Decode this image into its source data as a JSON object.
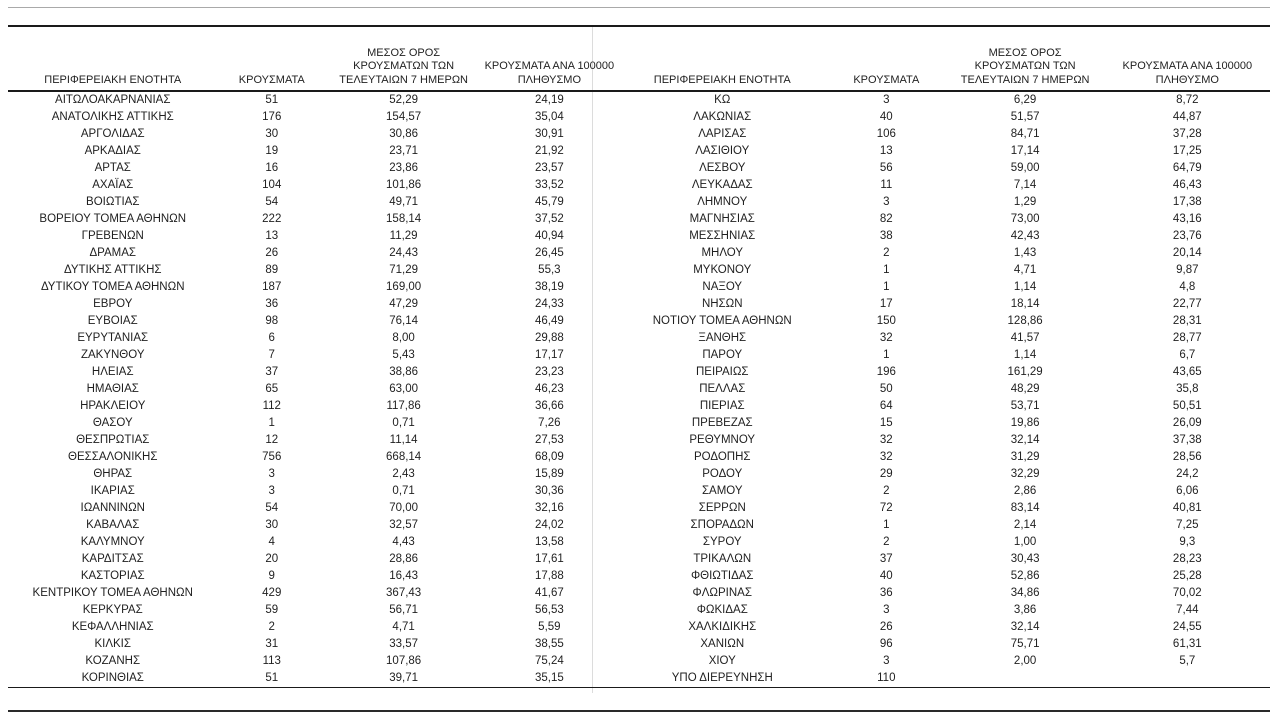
{
  "page": {
    "columns": {
      "region": "ΠΕΡΙΦΕΡΕΙΑΚΗ ΕΝΟΤΗΤΑ",
      "cases": "ΚΡΟΥΣΜΑΤΑ",
      "avg7": "ΜΕΣΟΣ ΟΡΟΣ\nΚΡΟΥΣΜΑΤΩΝ ΤΩΝ\nΤΕΛΕΥΤΑΙΩΝ 7 ΗΜΕΡΩΝ",
      "per100k": "ΚΡΟΥΣΜΑΤΑ ΑΝΑ 100000\nΠΛΗΘΥΣΜΟ"
    },
    "left_rows": [
      [
        "ΑΙΤΩΛΟΑΚΑΡΝΑΝΙΑΣ",
        "51",
        "52,29",
        "24,19"
      ],
      [
        "ΑΝΑΤΟΛΙΚΗΣ ΑΤΤΙΚΗΣ",
        "176",
        "154,57",
        "35,04"
      ],
      [
        "ΑΡΓΟΛΙΔΑΣ",
        "30",
        "30,86",
        "30,91"
      ],
      [
        "ΑΡΚΑΔΙΑΣ",
        "19",
        "23,71",
        "21,92"
      ],
      [
        "ΑΡΤΑΣ",
        "16",
        "23,86",
        "23,57"
      ],
      [
        "ΑΧΑΪΑΣ",
        "104",
        "101,86",
        "33,52"
      ],
      [
        "ΒΟΙΩΤΙΑΣ",
        "54",
        "49,71",
        "45,79"
      ],
      [
        "ΒΟΡΕΙΟΥ ΤΟΜΕΑ ΑΘΗΝΩΝ",
        "222",
        "158,14",
        "37,52"
      ],
      [
        "ΓΡΕΒΕΝΩΝ",
        "13",
        "11,29",
        "40,94"
      ],
      [
        "ΔΡΑΜΑΣ",
        "26",
        "24,43",
        "26,45"
      ],
      [
        "ΔΥΤΙΚΗΣ ΑΤΤΙΚΗΣ",
        "89",
        "71,29",
        "55,3"
      ],
      [
        "ΔΥΤΙΚΟΥ ΤΟΜΕΑ ΑΘΗΝΩΝ",
        "187",
        "169,00",
        "38,19"
      ],
      [
        "ΕΒΡΟΥ",
        "36",
        "47,29",
        "24,33"
      ],
      [
        "ΕΥΒΟΙΑΣ",
        "98",
        "76,14",
        "46,49"
      ],
      [
        "ΕΥΡΥΤΑΝΙΑΣ",
        "6",
        "8,00",
        "29,88"
      ],
      [
        "ΖΑΚΥΝΘΟΥ",
        "7",
        "5,43",
        "17,17"
      ],
      [
        "ΗΛΕΙΑΣ",
        "37",
        "38,86",
        "23,23"
      ],
      [
        "ΗΜΑΘΙΑΣ",
        "65",
        "63,00",
        "46,23"
      ],
      [
        "ΗΡΑΚΛΕΙΟΥ",
        "112",
        "117,86",
        "36,66"
      ],
      [
        "ΘΑΣΟΥ",
        "1",
        "0,71",
        "7,26"
      ],
      [
        "ΘΕΣΠΡΩΤΙΑΣ",
        "12",
        "11,14",
        "27,53"
      ],
      [
        "ΘΕΣΣΑΛΟΝΙΚΗΣ",
        "756",
        "668,14",
        "68,09"
      ],
      [
        "ΘΗΡΑΣ",
        "3",
        "2,43",
        "15,89"
      ],
      [
        "ΙΚΑΡΙΑΣ",
        "3",
        "0,71",
        "30,36"
      ],
      [
        "ΙΩΑΝΝΙΝΩΝ",
        "54",
        "70,00",
        "32,16"
      ],
      [
        "ΚΑΒΑΛΑΣ",
        "30",
        "32,57",
        "24,02"
      ],
      [
        "ΚΑΛΥΜΝΟΥ",
        "4",
        "4,43",
        "13,58"
      ],
      [
        "ΚΑΡΔΙΤΣΑΣ",
        "20",
        "28,86",
        "17,61"
      ],
      [
        "ΚΑΣΤΟΡΙΑΣ",
        "9",
        "16,43",
        "17,88"
      ],
      [
        "ΚΕΝΤΡΙΚΟΥ ΤΟΜΕΑ ΑΘΗΝΩΝ",
        "429",
        "367,43",
        "41,67"
      ],
      [
        "ΚΕΡΚΥΡΑΣ",
        "59",
        "56,71",
        "56,53"
      ],
      [
        "ΚΕΦΑΛΛΗΝΙΑΣ",
        "2",
        "4,71",
        "5,59"
      ],
      [
        "ΚΙΛΚΙΣ",
        "31",
        "33,57",
        "38,55"
      ],
      [
        "ΚΟΖΑΝΗΣ",
        "113",
        "107,86",
        "75,24"
      ],
      [
        "ΚΟΡΙΝΘΙΑΣ",
        "51",
        "39,71",
        "35,15"
      ]
    ],
    "right_rows": [
      [
        "ΚΩ",
        "3",
        "6,29",
        "8,72"
      ],
      [
        "ΛΑΚΩΝΙΑΣ",
        "40",
        "51,57",
        "44,87"
      ],
      [
        "ΛΑΡΙΣΑΣ",
        "106",
        "84,71",
        "37,28"
      ],
      [
        "ΛΑΣΙΘΙΟΥ",
        "13",
        "17,14",
        "17,25"
      ],
      [
        "ΛΕΣΒΟΥ",
        "56",
        "59,00",
        "64,79"
      ],
      [
        "ΛΕΥΚΑΔΑΣ",
        "11",
        "7,14",
        "46,43"
      ],
      [
        "ΛΗΜΝΟΥ",
        "3",
        "1,29",
        "17,38"
      ],
      [
        "ΜΑΓΝΗΣΙΑΣ",
        "82",
        "73,00",
        "43,16"
      ],
      [
        "ΜΕΣΣΗΝΙΑΣ",
        "38",
        "42,43",
        "23,76"
      ],
      [
        "ΜΗΛΟΥ",
        "2",
        "1,43",
        "20,14"
      ],
      [
        "ΜΥΚΟΝΟΥ",
        "1",
        "4,71",
        "9,87"
      ],
      [
        "ΝΑΞΟΥ",
        "1",
        "1,14",
        "4,8"
      ],
      [
        "ΝΗΣΩΝ",
        "17",
        "18,14",
        "22,77"
      ],
      [
        "ΝΟΤΙΟΥ ΤΟΜΕΑ ΑΘΗΝΩΝ",
        "150",
        "128,86",
        "28,31"
      ],
      [
        "ΞΑΝΘΗΣ",
        "32",
        "41,57",
        "28,77"
      ],
      [
        "ΠΑΡΟΥ",
        "1",
        "1,14",
        "6,7"
      ],
      [
        "ΠΕΙΡΑΙΩΣ",
        "196",
        "161,29",
        "43,65"
      ],
      [
        "ΠΕΛΛΑΣ",
        "50",
        "48,29",
        "35,8"
      ],
      [
        "ΠΙΕΡΙΑΣ",
        "64",
        "53,71",
        "50,51"
      ],
      [
        "ΠΡΕΒΕΖΑΣ",
        "15",
        "19,86",
        "26,09"
      ],
      [
        "ΡΕΘΥΜΝΟΥ",
        "32",
        "32,14",
        "37,38"
      ],
      [
        "ΡΟΔΟΠΗΣ",
        "32",
        "31,29",
        "28,56"
      ],
      [
        "ΡΟΔΟΥ",
        "29",
        "32,29",
        "24,2"
      ],
      [
        "ΣΑΜΟΥ",
        "2",
        "2,86",
        "6,06"
      ],
      [
        "ΣΕΡΡΩΝ",
        "72",
        "83,14",
        "40,81"
      ],
      [
        "ΣΠΟΡΑΔΩΝ",
        "1",
        "2,14",
        "7,25"
      ],
      [
        "ΣΥΡΟΥ",
        "2",
        "1,00",
        "9,3"
      ],
      [
        "ΤΡΙΚΑΛΩΝ",
        "37",
        "30,43",
        "28,23"
      ],
      [
        "ΦΘΙΩΤΙΔΑΣ",
        "40",
        "52,86",
        "25,28"
      ],
      [
        "ΦΛΩΡΙΝΑΣ",
        "36",
        "34,86",
        "70,02"
      ],
      [
        "ΦΩΚΙΔΑΣ",
        "3",
        "3,86",
        "7,44"
      ],
      [
        "ΧΑΛΚΙΔΙΚΗΣ",
        "26",
        "32,14",
        "24,55"
      ],
      [
        "ΧΑΝΙΩΝ",
        "96",
        "75,71",
        "61,31"
      ],
      [
        "ΧΙΟΥ",
        "3",
        "2,00",
        "5,7"
      ],
      [
        "ΥΠΟ ΔΙΕΡΕΥΝΗΣΗ",
        "110",
        "",
        ""
      ]
    ]
  }
}
